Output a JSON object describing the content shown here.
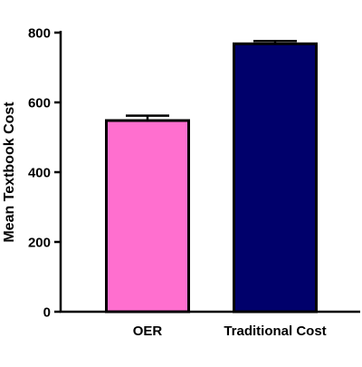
{
  "chart_data": {
    "type": "bar",
    "title": "",
    "xlabel": "",
    "ylabel": "Mean Textbook Cost",
    "categories": [
      "OER",
      "Traditional Cost"
    ],
    "values": [
      548,
      768
    ],
    "error": [
      14,
      8
    ],
    "ylim": [
      0,
      800
    ],
    "yticks": [
      0,
      200,
      400,
      600,
      800
    ],
    "grid": false,
    "legend": "none",
    "bar_colors": [
      "#ff6fcf",
      "#00006b"
    ],
    "edge_color": "#000000"
  }
}
